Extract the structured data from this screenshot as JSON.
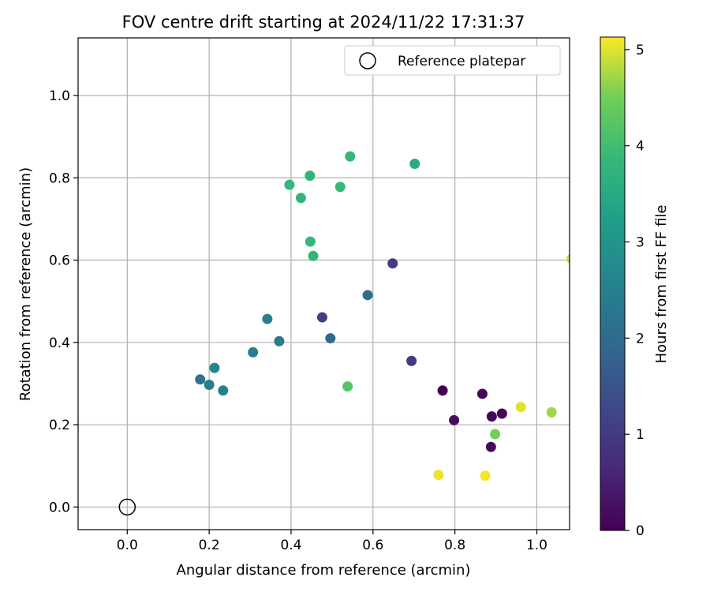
{
  "chart_data": {
    "type": "scatter",
    "title": "FOV centre drift starting at 2024/11/22 17:31:37",
    "xlabel": "Angular distance from reference (arcmin)",
    "ylabel": "Rotation from reference (arcmin)",
    "xlim": [
      -0.12,
      1.08
    ],
    "ylim": [
      -0.055,
      1.14
    ],
    "xticks": [
      "0.0",
      "0.2",
      "0.4",
      "0.6",
      "0.8",
      "1.0"
    ],
    "yticks": [
      "0.0",
      "0.2",
      "0.4",
      "0.6",
      "0.8",
      "1.0"
    ],
    "grid": true,
    "legend": {
      "position": "top-right",
      "entries": [
        "Reference platepar"
      ]
    },
    "reference_point": {
      "x": 0.0,
      "y": 0.0
    },
    "colorbar": {
      "label": "Hours from first FF file",
      "range": [
        0,
        5.13
      ],
      "ticks": [
        "0",
        "1",
        "2",
        "3",
        "4",
        "5"
      ],
      "colormap": "viridis"
    },
    "points": [
      {
        "x": 0.77,
        "y": 0.283,
        "hours": 0.0
      },
      {
        "x": 0.867,
        "y": 0.275,
        "hours": 0.05
      },
      {
        "x": 0.915,
        "y": 0.227,
        "hours": 0.1
      },
      {
        "x": 0.89,
        "y": 0.22,
        "hours": 0.12
      },
      {
        "x": 0.888,
        "y": 0.146,
        "hours": 0.15
      },
      {
        "x": 0.798,
        "y": 0.211,
        "hours": 0.2
      },
      {
        "x": 0.694,
        "y": 0.355,
        "hours": 1.0
      },
      {
        "x": 0.648,
        "y": 0.592,
        "hours": 1.05
      },
      {
        "x": 0.476,
        "y": 0.461,
        "hours": 1.1
      },
      {
        "x": 0.496,
        "y": 0.41,
        "hours": 1.95
      },
      {
        "x": 0.587,
        "y": 0.515,
        "hours": 2.1
      },
      {
        "x": 0.371,
        "y": 0.403,
        "hours": 2.4
      },
      {
        "x": 0.342,
        "y": 0.457,
        "hours": 2.45
      },
      {
        "x": 0.307,
        "y": 0.376,
        "hours": 2.5
      },
      {
        "x": 0.213,
        "y": 0.338,
        "hours": 2.6
      },
      {
        "x": 0.178,
        "y": 0.31,
        "hours": 2.2
      },
      {
        "x": 0.2,
        "y": 0.297,
        "hours": 2.4
      },
      {
        "x": 0.234,
        "y": 0.283,
        "hours": 2.55
      },
      {
        "x": 0.702,
        "y": 0.834,
        "hours": 3.55
      },
      {
        "x": 0.544,
        "y": 0.852,
        "hours": 3.85
      },
      {
        "x": 0.446,
        "y": 0.805,
        "hours": 3.8
      },
      {
        "x": 0.396,
        "y": 0.783,
        "hours": 3.85
      },
      {
        "x": 0.52,
        "y": 0.778,
        "hours": 3.9
      },
      {
        "x": 0.424,
        "y": 0.751,
        "hours": 3.8
      },
      {
        "x": 0.447,
        "y": 0.645,
        "hours": 3.85
      },
      {
        "x": 0.454,
        "y": 0.61,
        "hours": 3.8
      },
      {
        "x": 0.538,
        "y": 0.293,
        "hours": 4.2
      },
      {
        "x": 0.898,
        "y": 0.177,
        "hours": 4.5
      },
      {
        "x": 1.036,
        "y": 0.23,
        "hours": 4.7
      },
      {
        "x": 0.961,
        "y": 0.243,
        "hours": 5.0
      },
      {
        "x": 0.76,
        "y": 0.078,
        "hours": 5.05
      },
      {
        "x": 0.874,
        "y": 0.076,
        "hours": 5.1
      },
      {
        "x": 1.085,
        "y": 0.603,
        "hours": 4.9
      }
    ]
  }
}
